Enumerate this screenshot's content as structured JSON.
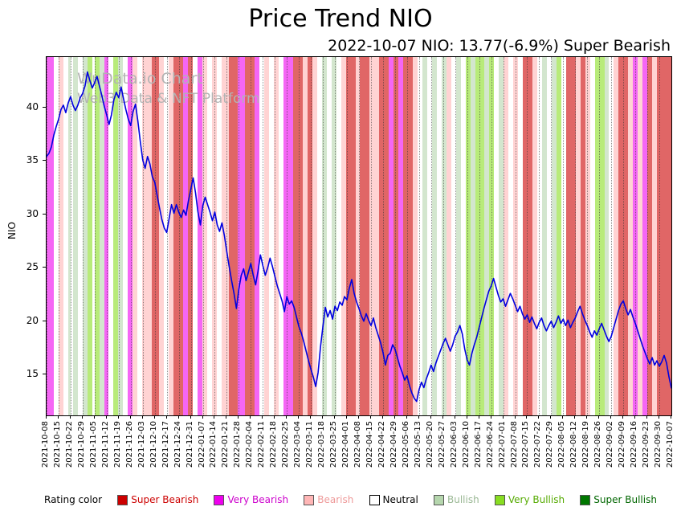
{
  "watermark": {
    "line1": "WuData.io Chart",
    "line2": "Web3 Data & NFT Platform"
  },
  "legend": {
    "title": "Rating color",
    "items": [
      {
        "key": "super_bearish",
        "label": "Super Bearish",
        "color": "#cc0000",
        "text_color": "#cc0000"
      },
      {
        "key": "very_bearish",
        "label": "Very Bearish",
        "color": "#ee00ee",
        "text_color": "#cc00cc"
      },
      {
        "key": "bearish",
        "label": "Bearish",
        "color": "#ffb6b6",
        "text_color": "#ee9999"
      },
      {
        "key": "neutral",
        "label": "Neutral",
        "color": "#ffffff",
        "text_color": "#000000"
      },
      {
        "key": "bullish",
        "label": "Bullish",
        "color": "#b5d6ad",
        "text_color": "#9ab894"
      },
      {
        "key": "very_bullish",
        "label": "Very Bullish",
        "color": "#88dd22",
        "text_color": "#55aa00"
      },
      {
        "key": "super_bullish",
        "label": "Super Bullish",
        "color": "#007700",
        "text_color": "#006600"
      }
    ]
  },
  "chart_data": {
    "type": "line",
    "title": "Price Trend NIO",
    "subtitle": "2022-10-07 NIO: 13.77(-6.9%) Super Bearish",
    "ylabel": "NIO",
    "ylim": [
      11.2,
      44.7
    ],
    "yticks": [
      15,
      20,
      25,
      30,
      35,
      40
    ],
    "grid": "weekly vertical dotted lines",
    "legend_position": "bottom",
    "x_tick_interval_days": 5,
    "x_tick_labels": [
      "2021-10-08",
      "2021-10-15",
      "2021-10-22",
      "2021-10-29",
      "2021-11-05",
      "2021-11-12",
      "2021-11-19",
      "2021-11-26",
      "2021-12-03",
      "2021-12-10",
      "2021-12-17",
      "2021-12-24",
      "2021-12-31",
      "2022-01-07",
      "2022-01-14",
      "2022-01-21",
      "2022-01-28",
      "2022-02-04",
      "2022-02-11",
      "2022-02-18",
      "2022-02-25",
      "2022-03-04",
      "2022-03-11",
      "2022-03-18",
      "2022-03-25",
      "2022-04-01",
      "2022-04-08",
      "2022-04-15",
      "2022-04-22",
      "2022-04-29",
      "2022-05-06",
      "2022-05-13",
      "2022-05-20",
      "2022-05-27",
      "2022-06-03",
      "2022-06-10",
      "2022-06-17",
      "2022-06-24",
      "2022-07-01",
      "2022-07-08",
      "2022-07-15",
      "2022-07-22",
      "2022-07-29",
      "2022-08-05",
      "2022-08-12",
      "2022-08-19",
      "2022-08-26",
      "2022-09-02",
      "2022-09-09",
      "2022-09-16",
      "2022-09-23",
      "2022-09-30",
      "2022-10-07"
    ],
    "series": [
      {
        "name": "NIO daily close (USD)",
        "color": "#0000e0",
        "values": [
          35.4,
          35.7,
          36.3,
          37.4,
          38.2,
          38.9,
          39.8,
          40.2,
          39.5,
          40.4,
          41.0,
          40.2,
          39.7,
          40.2,
          40.9,
          41.3,
          42.0,
          43.3,
          42.5,
          41.8,
          42.3,
          42.9,
          42.0,
          41.1,
          40.1,
          39.3,
          38.4,
          39.3,
          40.7,
          41.4,
          40.9,
          41.9,
          40.8,
          39.8,
          38.9,
          38.3,
          39.6,
          40.3,
          38.7,
          36.8,
          35.1,
          34.3,
          35.4,
          34.7,
          33.5,
          33.0,
          31.8,
          30.6,
          29.5,
          28.7,
          28.3,
          29.6,
          30.9,
          30.1,
          30.9,
          30.2,
          29.7,
          30.4,
          29.9,
          31.2,
          32.3,
          33.4,
          32.0,
          30.2,
          29.0,
          30.8,
          31.6,
          30.9,
          30.2,
          29.4,
          30.2,
          29.0,
          28.4,
          29.2,
          28.0,
          26.5,
          25.1,
          23.8,
          22.6,
          21.2,
          23.0,
          24.3,
          24.9,
          23.8,
          24.6,
          25.4,
          24.3,
          23.4,
          24.7,
          26.2,
          25.2,
          24.3,
          25.0,
          25.9,
          25.1,
          24.2,
          23.3,
          22.6,
          21.9,
          20.9,
          22.3,
          21.6,
          21.9,
          21.3,
          20.4,
          19.5,
          18.9,
          18.1,
          17.2,
          16.3,
          15.5,
          14.8,
          13.9,
          15.2,
          17.6,
          19.5,
          21.3,
          20.4,
          21.0,
          20.2,
          21.4,
          21.0,
          21.8,
          21.5,
          22.3,
          22.0,
          23.1,
          23.9,
          22.6,
          21.8,
          21.2,
          20.5,
          20.0,
          20.7,
          20.1,
          19.6,
          20.3,
          19.4,
          18.7,
          18.0,
          17.1,
          15.9,
          16.8,
          17.0,
          17.8,
          17.4,
          16.6,
          15.8,
          15.2,
          14.5,
          14.9,
          14.0,
          13.3,
          12.8,
          12.5,
          13.6,
          14.3,
          13.8,
          14.6,
          15.2,
          15.9,
          15.3,
          16.1,
          16.7,
          17.3,
          17.9,
          18.4,
          17.8,
          17.2,
          17.8,
          18.6,
          19.0,
          19.6,
          18.8,
          17.4,
          16.4,
          15.9,
          17.0,
          17.8,
          18.5,
          19.4,
          20.3,
          21.2,
          22.0,
          22.8,
          23.3,
          24.0,
          23.2,
          22.4,
          21.8,
          22.1,
          21.4,
          22.0,
          22.6,
          22.1,
          21.5,
          20.9,
          21.4,
          20.7,
          20.2,
          20.6,
          19.9,
          20.4,
          19.8,
          19.3,
          19.9,
          20.3,
          19.6,
          19.1,
          19.6,
          20.0,
          19.4,
          19.9,
          20.5,
          19.8,
          20.2,
          19.6,
          20.1,
          19.4,
          19.9,
          20.3,
          20.9,
          21.4,
          20.7,
          20.1,
          19.6,
          19.0,
          18.5,
          19.1,
          18.7,
          19.3,
          19.8,
          19.2,
          18.6,
          18.1,
          18.6,
          19.4,
          20.2,
          21.0,
          21.6,
          21.9,
          21.2,
          20.6,
          21.1,
          20.4,
          19.8,
          19.1,
          18.4,
          17.7,
          17.1,
          16.5,
          16.0,
          16.6,
          15.9,
          16.3,
          15.8,
          16.2,
          16.8,
          16.1,
          14.8,
          13.77
        ]
      }
    ],
    "rating_colors": {
      "super_bearish": "#cc0000",
      "very_bearish": "#ee00ee",
      "bearish": "#ffb6b6",
      "neutral": "#ffffff",
      "bullish": "#b5d6ad",
      "very_bullish": "#88dd22",
      "super_bullish": "#007700"
    },
    "rating_bands": {
      "opacity": 0.6,
      "total_days": 261,
      "segments": [
        [
          0,
          3,
          "very_bearish"
        ],
        [
          3,
          5,
          "neutral"
        ],
        [
          5,
          7,
          "bearish"
        ],
        [
          7,
          9,
          "neutral"
        ],
        [
          9,
          10,
          "bullish"
        ],
        [
          10,
          11,
          "neutral"
        ],
        [
          11,
          13,
          "bullish"
        ],
        [
          13,
          15,
          "neutral"
        ],
        [
          15,
          17,
          "bullish"
        ],
        [
          17,
          19,
          "very_bullish"
        ],
        [
          19,
          20,
          "neutral"
        ],
        [
          20,
          22,
          "very_bullish"
        ],
        [
          22,
          24,
          "bullish"
        ],
        [
          24,
          26,
          "very_bearish"
        ],
        [
          26,
          28,
          "neutral"
        ],
        [
          28,
          30,
          "very_bullish"
        ],
        [
          30,
          32,
          "bullish"
        ],
        [
          32,
          34,
          "neutral"
        ],
        [
          34,
          36,
          "very_bearish"
        ],
        [
          36,
          38,
          "bearish"
        ],
        [
          38,
          40,
          "neutral"
        ],
        [
          40,
          44,
          "bearish"
        ],
        [
          44,
          47,
          "super_bearish"
        ],
        [
          47,
          49,
          "bearish"
        ],
        [
          49,
          51,
          "neutral"
        ],
        [
          51,
          53,
          "bearish"
        ],
        [
          53,
          57,
          "super_bearish"
        ],
        [
          57,
          59,
          "very_bearish"
        ],
        [
          59,
          61,
          "super_bearish"
        ],
        [
          61,
          63,
          "neutral"
        ],
        [
          63,
          65,
          "very_bearish"
        ],
        [
          65,
          67,
          "bearish"
        ],
        [
          67,
          69,
          "neutral"
        ],
        [
          69,
          71,
          "bearish"
        ],
        [
          71,
          73,
          "neutral"
        ],
        [
          73,
          76,
          "bearish"
        ],
        [
          76,
          80,
          "super_bearish"
        ],
        [
          80,
          83,
          "very_bearish"
        ],
        [
          83,
          87,
          "super_bearish"
        ],
        [
          87,
          89,
          "very_bearish"
        ],
        [
          89,
          91,
          "neutral"
        ],
        [
          91,
          93,
          "bearish"
        ],
        [
          93,
          95,
          "neutral"
        ],
        [
          95,
          97,
          "bearish"
        ],
        [
          97,
          99,
          "neutral"
        ],
        [
          99,
          103,
          "very_bearish"
        ],
        [
          103,
          107,
          "super_bearish"
        ],
        [
          107,
          109,
          "bearish"
        ],
        [
          109,
          111,
          "super_bearish"
        ],
        [
          111,
          113,
          "bearish"
        ],
        [
          113,
          115,
          "neutral"
        ],
        [
          115,
          117,
          "bullish"
        ],
        [
          117,
          119,
          "neutral"
        ],
        [
          119,
          121,
          "bullish"
        ],
        [
          121,
          123,
          "neutral"
        ],
        [
          123,
          125,
          "bearish"
        ],
        [
          125,
          129,
          "super_bearish"
        ],
        [
          129,
          131,
          "bearish"
        ],
        [
          131,
          135,
          "super_bearish"
        ],
        [
          135,
          139,
          "bearish"
        ],
        [
          139,
          143,
          "super_bearish"
        ],
        [
          143,
          145,
          "very_bearish"
        ],
        [
          145,
          147,
          "super_bearish"
        ],
        [
          147,
          149,
          "very_bearish"
        ],
        [
          149,
          153,
          "super_bearish"
        ],
        [
          153,
          155,
          "bearish"
        ],
        [
          155,
          157,
          "neutral"
        ],
        [
          157,
          159,
          "bullish"
        ],
        [
          159,
          161,
          "neutral"
        ],
        [
          161,
          163,
          "bullish"
        ],
        [
          163,
          165,
          "neutral"
        ],
        [
          165,
          167,
          "bullish"
        ],
        [
          167,
          169,
          "bearish"
        ],
        [
          169,
          171,
          "neutral"
        ],
        [
          171,
          173,
          "bullish"
        ],
        [
          173,
          175,
          "neutral"
        ],
        [
          175,
          177,
          "very_bullish"
        ],
        [
          177,
          179,
          "bullish"
        ],
        [
          179,
          183,
          "very_bullish"
        ],
        [
          183,
          185,
          "bullish"
        ],
        [
          185,
          187,
          "very_bullish"
        ],
        [
          187,
          189,
          "neutral"
        ],
        [
          189,
          191,
          "bullish"
        ],
        [
          191,
          193,
          "bearish"
        ],
        [
          193,
          195,
          "neutral"
        ],
        [
          195,
          197,
          "bearish"
        ],
        [
          197,
          199,
          "neutral"
        ],
        [
          199,
          203,
          "super_bearish"
        ],
        [
          203,
          205,
          "bearish"
        ],
        [
          205,
          207,
          "neutral"
        ],
        [
          207,
          209,
          "bullish"
        ],
        [
          209,
          211,
          "neutral"
        ],
        [
          211,
          213,
          "bullish"
        ],
        [
          213,
          215,
          "very_bullish"
        ],
        [
          215,
          217,
          "neutral"
        ],
        [
          217,
          221,
          "super_bearish"
        ],
        [
          221,
          223,
          "bearish"
        ],
        [
          223,
          225,
          "super_bearish"
        ],
        [
          225,
          227,
          "bearish"
        ],
        [
          227,
          229,
          "neutral"
        ],
        [
          229,
          233,
          "very_bullish"
        ],
        [
          233,
          235,
          "bullish"
        ],
        [
          235,
          237,
          "neutral"
        ],
        [
          237,
          239,
          "bearish"
        ],
        [
          239,
          243,
          "super_bearish"
        ],
        [
          243,
          245,
          "bearish"
        ],
        [
          245,
          247,
          "very_bearish"
        ],
        [
          247,
          249,
          "bearish"
        ],
        [
          249,
          251,
          "very_bearish"
        ],
        [
          251,
          253,
          "super_bearish"
        ],
        [
          253,
          255,
          "bearish"
        ],
        [
          255,
          261,
          "super_bearish"
        ]
      ]
    }
  }
}
